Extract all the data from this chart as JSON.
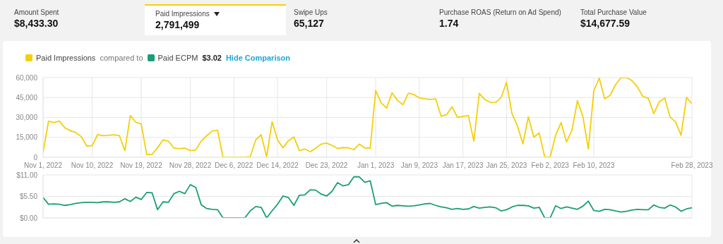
{
  "chart_data": [
    {
      "type": "other",
      "annotations": [
        "Amount Spent",
        "$8,433.30",
        "Paid Impressions",
        "2,791,499",
        "Swipe Ups",
        "65,127",
        "Purchase ROAS (Return on Ad Spend)",
        "1.74",
        "Total Purchase Value",
        "$14,677.59"
      ]
    },
    {
      "type": "line",
      "legend": "top left",
      "grid": true,
      "annotations": [
        "compared to"
      ],
      "x": [
        "2022-11-01",
        "2022-11-02",
        "2022-11-03",
        "2022-11-04",
        "2022-11-05",
        "2022-11-06",
        "2022-11-07",
        "2022-11-08",
        "2022-11-09",
        "2022-11-10",
        "2022-11-11",
        "2022-11-12",
        "2022-11-13",
        "2022-11-14",
        "2022-11-15",
        "2022-11-16",
        "2022-11-17",
        "2022-11-18",
        "2022-11-19",
        "2022-11-20",
        "2022-11-21",
        "2022-11-22",
        "2022-11-23",
        "2022-11-24",
        "2022-11-25",
        "2022-11-26",
        "2022-11-27",
        "2022-11-28",
        "2022-11-29",
        "2022-11-30",
        "2022-12-01",
        "2022-12-02",
        "2022-12-03",
        "2022-12-04",
        "2022-12-05",
        "2022-12-06",
        "2022-12-07",
        "2022-12-08",
        "2022-12-09",
        "2022-12-10",
        "2022-12-11",
        "2022-12-12",
        "2022-12-13",
        "2022-12-14",
        "2022-12-15",
        "2022-12-16",
        "2022-12-17",
        "2022-12-18",
        "2022-12-19",
        "2022-12-20",
        "2022-12-21",
        "2022-12-22",
        "2022-12-23",
        "2022-12-24",
        "2022-12-25",
        "2022-12-26",
        "2022-12-27",
        "2022-12-28",
        "2022-12-29",
        "2022-12-30",
        "2022-12-31",
        "2023-01-01",
        "2023-01-02",
        "2023-01-03",
        "2023-01-04",
        "2023-01-05",
        "2023-01-06",
        "2023-01-07",
        "2023-01-08",
        "2023-01-09",
        "2023-01-10",
        "2023-01-11",
        "2023-01-12",
        "2023-01-13",
        "2023-01-14",
        "2023-01-15",
        "2023-01-16",
        "2023-01-17",
        "2023-01-18",
        "2023-01-19",
        "2023-01-20",
        "2023-01-21",
        "2023-01-22",
        "2023-01-23",
        "2023-01-24",
        "2023-01-25",
        "2023-01-26",
        "2023-01-27",
        "2023-01-28",
        "2023-01-29",
        "2023-01-30",
        "2023-01-31",
        "2023-02-01",
        "2023-02-02",
        "2023-02-03",
        "2023-02-04",
        "2023-02-05",
        "2023-02-06",
        "2023-02-07",
        "2023-02-08",
        "2023-02-09",
        "2023-02-10",
        "2023-02-11",
        "2023-02-12",
        "2023-02-13",
        "2023-02-14",
        "2023-02-15",
        "2023-02-16",
        "2023-02-17",
        "2023-02-18",
        "2023-02-19",
        "2023-02-20",
        "2023-02-21",
        "2023-02-22",
        "2023-02-23",
        "2023-02-24",
        "2023-02-25",
        "2023-02-26",
        "2023-02-27",
        "2023-02-28"
      ],
      "series": [
        {
          "name": "Paid Impressions",
          "color": "#f5cf0a",
          "values": [
            3700,
            27200,
            26100,
            27300,
            22200,
            20000,
            18600,
            15600,
            8500,
            8700,
            17000,
            16300,
            16500,
            16900,
            16300,
            5000,
            31400,
            26400,
            25200,
            2100,
            2300,
            7100,
            13100,
            12100,
            6900,
            6400,
            6900,
            5000,
            5500,
            12100,
            16200,
            19700,
            20400,
            0,
            0,
            0,
            0,
            0,
            500,
            13000,
            17000,
            400,
            26800,
            13000,
            7100,
            12400,
            15300,
            5000,
            6200,
            4100,
            6900,
            9900,
            10700,
            8900,
            6600,
            7300,
            7100,
            5700,
            9900,
            7000,
            6900,
            50200,
            41000,
            37100,
            48500,
            42800,
            39600,
            48300,
            47200,
            44700,
            44000,
            43500,
            44000,
            30900,
            32000,
            38000,
            30000,
            30700,
            31400,
            12200,
            48100,
            43500,
            41400,
            41200,
            44900,
            56400,
            32800,
            23600,
            10100,
            30400,
            15100,
            18300,
            200,
            200,
            16500,
            26100,
            11500,
            20400,
            42600,
            30700,
            6200,
            49900,
            59600,
            44000,
            46700,
            54700,
            60000,
            60000,
            57700,
            52900,
            45800,
            44400,
            32800,
            41700,
            44600,
            30200,
            26600,
            16500,
            44900,
            40500
          ]
        }
      ],
      "xlim": [
        "2022-11-01",
        "2023-02-28"
      ],
      "xticks": [
        {
          "value": "2022-11-01",
          "label": "Nov 1, 2022"
        },
        {
          "value": "2022-11-10",
          "label": "Nov 10, 2022"
        },
        {
          "value": "2022-11-19",
          "label": "Nov 19, 2022"
        },
        {
          "value": "2022-11-28",
          "label": "Nov 28, 2022"
        },
        {
          "value": "2022-12-06",
          "label": "Dec 6, 2022"
        },
        {
          "value": "2022-12-14",
          "label": "Dec 14, 2022"
        },
        {
          "value": "2022-12-23",
          "label": "Dec 23, 2022"
        },
        {
          "value": "2023-01-01",
          "label": "Jan 1, 2023"
        },
        {
          "value": "2023-01-09",
          "label": "Jan 9, 2023"
        },
        {
          "value": "2023-01-17",
          "label": "Jan 17, 2023"
        },
        {
          "value": "2023-01-25",
          "label": "Jan 25, 2023"
        },
        {
          "value": "2023-02-02",
          "label": "Feb 2, 2023"
        },
        {
          "value": "2023-02-10",
          "label": "Feb 10, 2023"
        },
        {
          "value": "2023-02-28",
          "label": "Feb 28, 2023"
        }
      ],
      "ylim": [
        0,
        60000
      ],
      "yticks": [
        0,
        {
          "value": 15000,
          "label": "15,000"
        },
        {
          "value": 30000,
          "label": "30,000"
        },
        {
          "value": 45000,
          "label": "45,000"
        },
        {
          "value": 60000,
          "label": "60,000"
        }
      ]
    },
    {
      "type": "line",
      "legend": "top left",
      "grid": true,
      "tick_labels": "y",
      "annotations": [
        "$3.02",
        "Hide Comparison"
      ],
      "x": [
        "2022-11-01",
        "2022-11-02",
        "2022-11-03",
        "2022-11-04",
        "2022-11-05",
        "2022-11-06",
        "2022-11-07",
        "2022-11-08",
        "2022-11-09",
        "2022-11-10",
        "2022-11-11",
        "2022-11-12",
        "2022-11-13",
        "2022-11-14",
        "2022-11-15",
        "2022-11-16",
        "2022-11-17",
        "2022-11-18",
        "2022-11-19",
        "2022-11-20",
        "2022-11-21",
        "2022-11-22",
        "2022-11-23",
        "2022-11-24",
        "2022-11-25",
        "2022-11-26",
        "2022-11-27",
        "2022-11-28",
        "2022-11-29",
        "2022-11-30",
        "2022-12-01",
        "2022-12-02",
        "2022-12-03",
        "2022-12-04",
        "2022-12-05",
        "2022-12-06",
        "2022-12-07",
        "2022-12-08",
        "2022-12-09",
        "2022-12-10",
        "2022-12-11",
        "2022-12-12",
        "2022-12-13",
        "2022-12-14",
        "2022-12-15",
        "2022-12-16",
        "2022-12-17",
        "2022-12-18",
        "2022-12-19",
        "2022-12-20",
        "2022-12-21",
        "2022-12-22",
        "2022-12-23",
        "2022-12-24",
        "2022-12-25",
        "2022-12-26",
        "2022-12-27",
        "2022-12-28",
        "2022-12-29",
        "2022-12-30",
        "2022-12-31",
        "2023-01-01",
        "2023-01-02",
        "2023-01-03",
        "2023-01-04",
        "2023-01-05",
        "2023-01-06",
        "2023-01-07",
        "2023-01-08",
        "2023-01-09",
        "2023-01-10",
        "2023-01-11",
        "2023-01-12",
        "2023-01-13",
        "2023-01-14",
        "2023-01-15",
        "2023-01-16",
        "2023-01-17",
        "2023-01-18",
        "2023-01-19",
        "2023-01-20",
        "2023-01-21",
        "2023-01-22",
        "2023-01-23",
        "2023-01-24",
        "2023-01-25",
        "2023-01-26",
        "2023-01-27",
        "2023-01-28",
        "2023-01-29",
        "2023-01-30",
        "2023-01-31",
        "2023-02-01",
        "2023-02-02",
        "2023-02-03",
        "2023-02-04",
        "2023-02-05",
        "2023-02-06",
        "2023-02-07",
        "2023-02-08",
        "2023-02-09",
        "2023-02-10",
        "2023-02-11",
        "2023-02-12",
        "2023-02-13",
        "2023-02-14",
        "2023-02-15",
        "2023-02-16",
        "2023-02-17",
        "2023-02-18",
        "2023-02-19",
        "2023-02-20",
        "2023-02-21",
        "2023-02-22",
        "2023-02-23",
        "2023-02-24",
        "2023-02-25",
        "2023-02-26",
        "2023-02-27",
        "2023-02-28"
      ],
      "series": [
        {
          "name": "Paid ECPM",
          "color": "#1b9e77",
          "values": [
            5.2,
            3.5,
            3.6,
            3.5,
            3.2,
            3.4,
            3.7,
            3.9,
            4.0,
            4.0,
            3.9,
            4.1,
            4.1,
            4.0,
            4.1,
            4.9,
            4.2,
            5.3,
            4.7,
            6.5,
            6.4,
            2.1,
            4.1,
            4.0,
            6.2,
            6.8,
            6.2,
            8.5,
            7.8,
            3.4,
            2.4,
            2.2,
            2.1,
            0,
            0,
            0,
            0,
            0,
            1.8,
            2.9,
            2.7,
            0,
            1.8,
            3.5,
            5.6,
            5.2,
            3.2,
            5.8,
            5.9,
            7.2,
            7.1,
            6.1,
            5.6,
            6.8,
            9.0,
            8.2,
            8.5,
            10.5,
            10.5,
            9.1,
            9.5,
            3.4,
            3.7,
            3.9,
            3.0,
            3.2,
            3.1,
            3.0,
            3.1,
            3.3,
            3.6,
            3.7,
            3.2,
            2.8,
            2.6,
            2.2,
            2.4,
            2.2,
            2.3,
            2.9,
            2.5,
            2.7,
            2.8,
            2.6,
            1.8,
            2.1,
            2.8,
            3.2,
            3.2,
            3.1,
            2.5,
            2.7,
            0,
            0,
            3.1,
            2.4,
            2.8,
            2.5,
            2.2,
            3.0,
            4.3,
            1.9,
            1.7,
            2.2,
            2.1,
            1.8,
            1.5,
            1.7,
            2.0,
            2.2,
            2.1,
            2.1,
            3.3,
            2.7,
            2.5,
            3.3,
            2.8,
            1.7,
            2.3,
            2.6
          ]
        }
      ],
      "xlim": [
        "2022-11-01",
        "2023-02-28"
      ],
      "xticks": [
        {
          "value": "2022-11-01",
          "label": null
        },
        {
          "value": "2022-11-10",
          "label": null
        },
        {
          "value": "2022-11-19",
          "label": null
        },
        {
          "value": "2022-11-28",
          "label": null
        },
        {
          "value": "2022-12-06",
          "label": null
        },
        {
          "value": "2022-12-14",
          "label": null
        },
        {
          "value": "2022-12-23",
          "label": null
        },
        {
          "value": "2023-01-01",
          "label": null
        },
        {
          "value": "2023-01-09",
          "label": null
        },
        {
          "value": "2023-01-17",
          "label": null
        },
        {
          "value": "2023-01-25",
          "label": null
        },
        {
          "value": "2023-02-02",
          "label": null
        },
        {
          "value": "2023-02-10",
          "label": null
        },
        {
          "value": "2023-02-28",
          "label": null
        }
      ],
      "ylim": [
        0,
        11
      ],
      "yticks": [
        {
          "value": 0,
          "label": "$0.00"
        },
        {
          "value": 5.5,
          "label": "$5.50"
        },
        {
          "value": 11,
          "label": "$11.00"
        }
      ]
    }
  ]
}
